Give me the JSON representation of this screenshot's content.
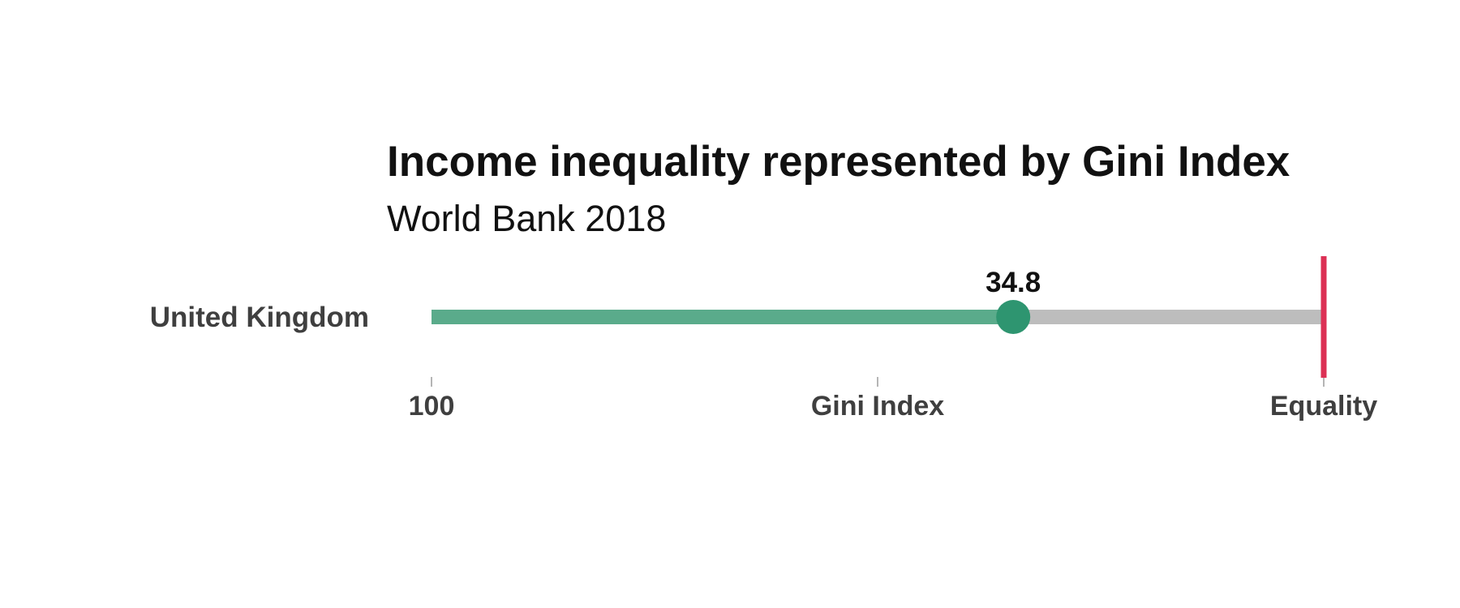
{
  "chart_data": {
    "type": "bar",
    "title": "Income inequality represented by Gini Index",
    "subtitle": "World Bank 2018",
    "categories": [
      "United Kingdom"
    ],
    "values": [
      34.8
    ],
    "value_labels": [
      "34.8"
    ],
    "xlim": [
      100,
      0
    ],
    "x_ticks": [
      {
        "value": 100,
        "label": "100"
      },
      {
        "value": 50,
        "label": "Gini Index"
      },
      {
        "value": 0,
        "label": "Equality"
      }
    ],
    "reference_line": {
      "value": 0
    },
    "grid": false,
    "legend": "none",
    "colors": {
      "bar": "#5aab8b",
      "track": "#bdbdbd",
      "point": "#2e9570",
      "reference": "#dc3155",
      "tick": "#b5b5b5"
    }
  }
}
